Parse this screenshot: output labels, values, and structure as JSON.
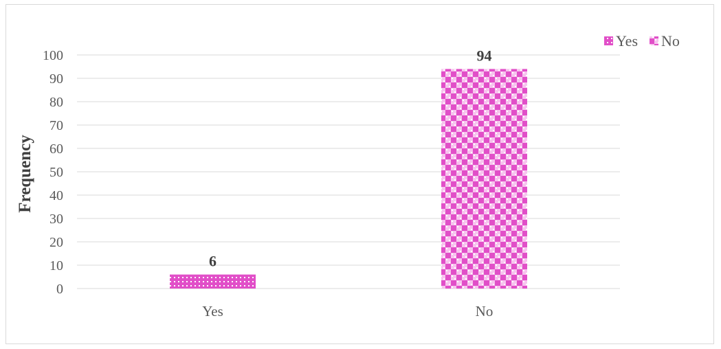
{
  "chart_data": {
    "type": "bar",
    "categories": [
      "Yes",
      "No"
    ],
    "values": [
      6,
      94
    ],
    "data_labels": [
      "6",
      "94"
    ],
    "title": "",
    "xlabel": "",
    "ylabel": "Frequency",
    "ylim": [
      0,
      100
    ],
    "yticks": [
      0,
      10,
      20,
      30,
      40,
      50,
      60,
      70,
      80,
      90,
      100
    ],
    "grid": true,
    "legend": {
      "position": "top-right",
      "entries": [
        "Yes",
        "No"
      ]
    },
    "colors": {
      "bar": "#e14fc8",
      "pattern_light": "#ffffff",
      "grid": "#d9d9d9"
    }
  }
}
